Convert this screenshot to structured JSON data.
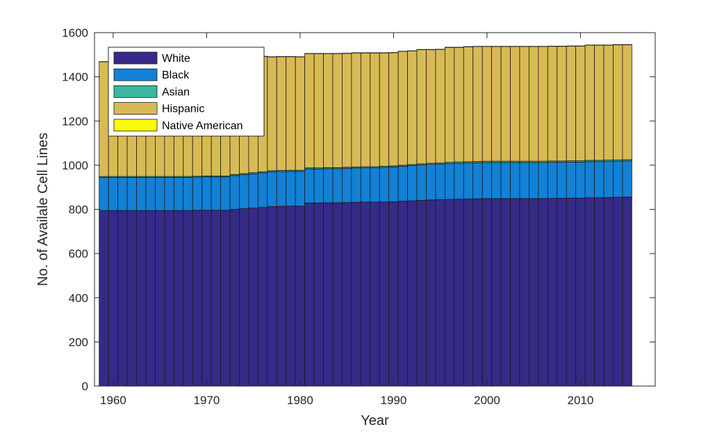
{
  "chart_data": {
    "type": "bar",
    "stacked": true,
    "xlabel": "Year",
    "ylabel": "No. of Availale Cell Lines",
    "xlim": [
      1958,
      2018
    ],
    "ylim": [
      0,
      1600
    ],
    "x_ticks": [
      1960,
      1970,
      1980,
      1990,
      2000,
      2010
    ],
    "y_ticks": [
      0,
      200,
      400,
      600,
      800,
      1000,
      1200,
      1400,
      1600
    ],
    "grid": false,
    "legend_position": "top-left",
    "x": [
      1959,
      1960,
      1961,
      1962,
      1963,
      1964,
      1965,
      1966,
      1967,
      1968,
      1969,
      1970,
      1971,
      1972,
      1973,
      1974,
      1975,
      1976,
      1977,
      1978,
      1979,
      1980,
      1981,
      1982,
      1983,
      1984,
      1985,
      1986,
      1987,
      1988,
      1989,
      1990,
      1991,
      1992,
      1993,
      1994,
      1995,
      1996,
      1997,
      1998,
      1999,
      2000,
      2001,
      2002,
      2003,
      2004,
      2005,
      2006,
      2007,
      2008,
      2009,
      2010,
      2011,
      2012,
      2013,
      2014,
      2015
    ],
    "series": [
      {
        "name": "White",
        "color": "#352a87",
        "values": [
          795,
          795,
          795,
          795,
          795,
          795,
          795,
          795,
          795,
          795,
          796,
          796,
          796,
          796,
          800,
          803,
          806,
          809,
          813,
          814,
          815,
          815,
          829,
          829,
          830,
          830,
          831,
          832,
          833,
          833,
          834,
          835,
          837,
          839,
          841,
          843,
          844,
          845,
          846,
          847,
          848,
          849,
          849,
          849,
          849,
          849,
          849,
          849,
          850,
          850,
          851,
          851,
          853,
          853,
          854,
          855,
          856
        ]
      },
      {
        "name": "Black",
        "color": "#1281d6",
        "values": [
          150,
          150,
          150,
          150,
          150,
          150,
          150,
          150,
          150,
          150,
          150,
          151,
          151,
          151,
          153,
          154,
          155,
          156,
          157,
          157,
          157,
          157,
          154,
          154,
          154,
          154,
          155,
          155,
          155,
          155,
          156,
          157,
          158,
          159,
          160,
          161,
          161,
          162,
          163,
          163,
          163,
          163,
          163,
          163,
          163,
          163,
          163,
          163,
          163,
          163,
          163,
          163,
          163,
          163,
          163,
          163,
          163
        ]
      },
      {
        "name": "Asian",
        "color": "#3bb89e",
        "values": [
          4,
          4,
          4,
          4,
          4,
          4,
          4,
          4,
          4,
          4,
          4,
          4,
          4,
          4,
          5,
          5,
          5,
          5,
          5,
          5,
          5,
          5,
          5,
          5,
          5,
          5,
          5,
          5,
          5,
          5,
          5,
          5,
          5,
          5,
          5,
          5,
          5,
          6,
          6,
          6,
          6,
          6,
          6,
          6,
          6,
          6,
          6,
          6,
          6,
          6,
          6,
          6,
          6,
          6,
          6,
          6,
          6
        ]
      },
      {
        "name": "Hispanic",
        "color": "#d8ba55",
        "values": [
          519,
          519,
          519,
          519,
          519,
          519,
          519,
          519,
          519,
          519,
          520,
          520,
          520,
          520,
          521,
          521,
          521,
          522,
          515,
          515,
          514,
          513,
          517,
          517,
          516,
          516,
          515,
          516,
          515,
          515,
          513,
          512,
          515,
          514,
          517,
          514,
          514,
          520,
          518,
          520,
          520,
          519,
          519,
          519,
          519,
          519,
          519,
          519,
          519,
          519,
          519,
          519,
          521,
          521,
          520,
          521,
          520
        ]
      },
      {
        "name": "Native American",
        "color": "#f9fb0e",
        "values": [
          1,
          1,
          1,
          1,
          1,
          1,
          1,
          1,
          1,
          1,
          1,
          1,
          1,
          1,
          1,
          1,
          1,
          1,
          1,
          1,
          1,
          1,
          1,
          1,
          1,
          1,
          1,
          1,
          1,
          1,
          1,
          1,
          1,
          1,
          1,
          1,
          1,
          1,
          1,
          1,
          1,
          1,
          1,
          1,
          1,
          1,
          1,
          1,
          1,
          1,
          1,
          1,
          1,
          1,
          1,
          1,
          1
        ]
      }
    ]
  }
}
